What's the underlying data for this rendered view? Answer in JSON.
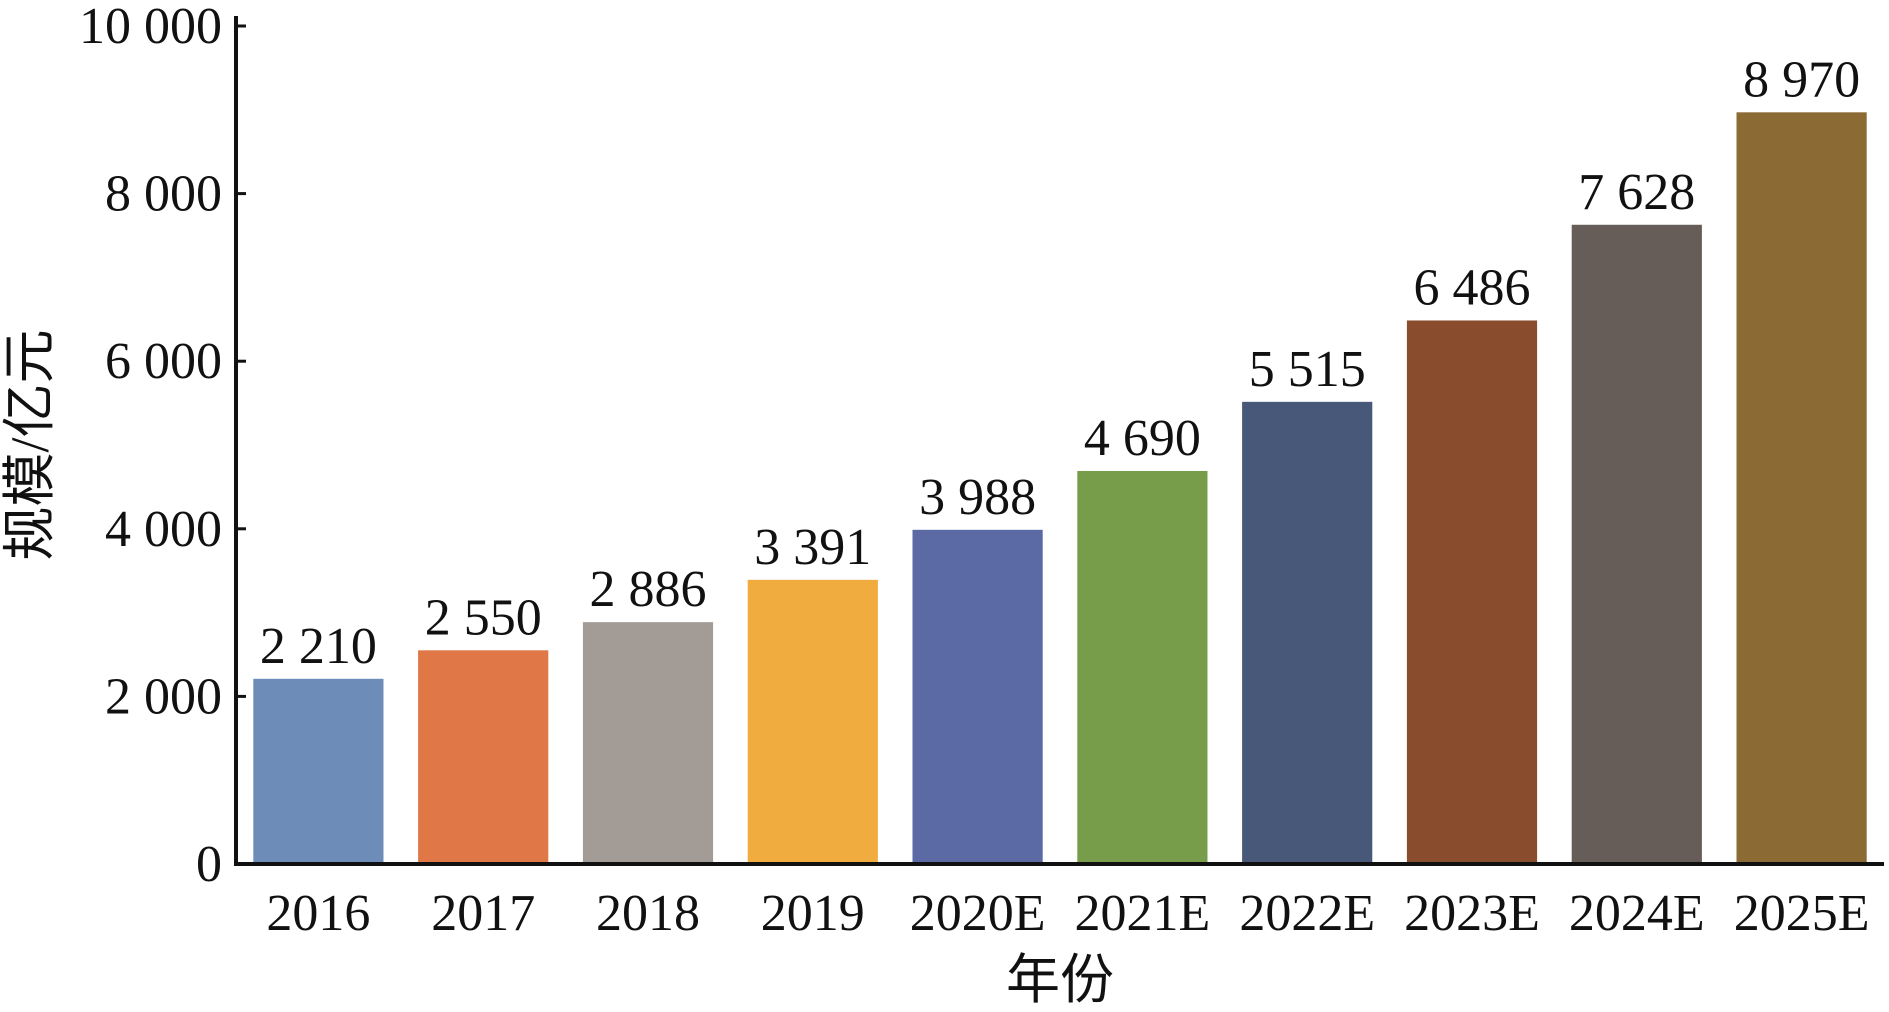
{
  "chart_data": {
    "type": "bar",
    "categories": [
      "2016",
      "2017",
      "2018",
      "2019",
      "2020E",
      "2021E",
      "2022E",
      "2023E",
      "2024E",
      "2025E"
    ],
    "values": [
      2210,
      2550,
      2886,
      3391,
      3988,
      4690,
      5515,
      6486,
      7628,
      8970
    ],
    "value_labels": [
      "2 210",
      "2 550",
      "2 886",
      "3 391",
      "3 988",
      "4 690",
      "5 515",
      "6 486",
      "7 628",
      "8 970"
    ],
    "colors": [
      "#6d8db8",
      "#e07747",
      "#a39c96",
      "#f1ac3f",
      "#5b69a4",
      "#789d4a",
      "#475878",
      "#894c2d",
      "#675d58",
      "#8c6a33"
    ],
    "xlabel": "年份",
    "ylabel": "规模/亿元",
    "ylim": [
      0,
      10000
    ],
    "yticks": [
      0,
      2000,
      4000,
      6000,
      8000,
      10000
    ],
    "ytick_labels": [
      "0",
      "2 000",
      "4 000",
      "6 000",
      "8 000",
      "10 000"
    ],
    "grid": false,
    "legend": false
  }
}
